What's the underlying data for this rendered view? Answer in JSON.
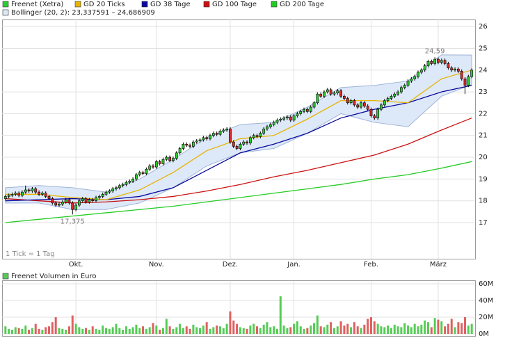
{
  "chart_data": [
    {
      "type": "candlestick",
      "name": "Freenet (Xetra)",
      "up_color": "#2ecc2e",
      "down_color": "#dd2a2a",
      "x": [
        0,
        1,
        2,
        3,
        4,
        5,
        6,
        7,
        8,
        9,
        10,
        11,
        12,
        13,
        14,
        15,
        16,
        17,
        18,
        19,
        20,
        21,
        22,
        23,
        24,
        25,
        26,
        27,
        28,
        29,
        30,
        31,
        32,
        33,
        34,
        35,
        36,
        37,
        38,
        39,
        40,
        41,
        42,
        43,
        44,
        45,
        46,
        47,
        48,
        49,
        50,
        51,
        52,
        53,
        54,
        55,
        56,
        57,
        58,
        59,
        60,
        61,
        62,
        63,
        64,
        65,
        66,
        67,
        68,
        69,
        70,
        71,
        72,
        73,
        74,
        75,
        76,
        77,
        78,
        79,
        80,
        81,
        82,
        83,
        84,
        85,
        86,
        87,
        88,
        89,
        90,
        91,
        92,
        93,
        94,
        95,
        96,
        97,
        98,
        99,
        100,
        101,
        102,
        103,
        104,
        105,
        106,
        107,
        108,
        109,
        110,
        111,
        112,
        113,
        114,
        115,
        116,
        117,
        118,
        119,
        120,
        121,
        122,
        123,
        124,
        125,
        126,
        127,
        128,
        129,
        130,
        131,
        132,
        133,
        134,
        135,
        136,
        137,
        138,
        139
      ],
      "open": [
        18.1,
        18.2,
        18.25,
        18.3,
        18.35,
        18.25,
        18.4,
        18.5,
        18.45,
        18.55,
        18.4,
        18.3,
        18.35,
        18.2,
        18.1,
        17.9,
        17.8,
        17.85,
        17.95,
        18.05,
        17.9,
        17.6,
        17.8,
        18.0,
        18.1,
        17.95,
        18.05,
        18.0,
        18.15,
        18.2,
        18.3,
        18.4,
        18.45,
        18.55,
        18.6,
        18.7,
        18.75,
        18.85,
        18.9,
        19.0,
        19.2,
        19.3,
        19.25,
        19.45,
        19.6,
        19.55,
        19.8,
        19.7,
        19.9,
        20.0,
        19.85,
        19.95,
        20.2,
        20.4,
        20.6,
        20.55,
        20.5,
        20.7,
        20.75,
        20.8,
        20.9,
        20.85,
        21.0,
        21.1,
        21.05,
        21.2,
        21.25,
        21.3,
        20.7,
        20.5,
        20.4,
        20.6,
        20.7,
        20.65,
        20.9,
        21.0,
        20.95,
        21.1,
        21.3,
        21.4,
        21.5,
        21.6,
        21.7,
        21.75,
        21.8,
        21.85,
        21.7,
        21.9,
        22.0,
        22.1,
        22.2,
        22.1,
        22.3,
        22.5,
        22.9,
        22.8,
        23.0,
        23.1,
        22.9,
        22.95,
        23.05,
        22.8,
        22.7,
        22.5,
        22.6,
        22.4,
        22.3,
        22.5,
        22.35,
        22.2,
        21.9,
        21.8,
        22.2,
        22.4,
        22.6,
        22.7,
        22.8,
        22.9,
        23.0,
        23.2,
        23.3,
        23.5,
        23.6,
        23.7,
        23.9,
        24.0,
        24.2,
        24.4,
        24.3,
        24.5,
        24.35,
        24.45,
        24.3,
        24.1,
        24.0,
        24.05,
        23.95,
        23.6,
        23.3,
        23.7
      ],
      "high": [
        18.28,
        18.33,
        18.38,
        18.43,
        18.43,
        18.48,
        18.7,
        18.58,
        18.63,
        18.63,
        18.48,
        18.43,
        18.43,
        18.28,
        18.18,
        17.98,
        17.93,
        18.03,
        18.13,
        18.13,
        17.98,
        17.88,
        18.08,
        18.18,
        18.18,
        18.13,
        18.13,
        18.23,
        18.28,
        18.38,
        18.48,
        18.53,
        18.63,
        18.68,
        18.78,
        18.83,
        18.93,
        18.98,
        19.08,
        19.28,
        19.38,
        19.38,
        19.53,
        19.68,
        19.68,
        19.88,
        19.88,
        19.98,
        20.08,
        20.08,
        20.03,
        20.28,
        20.48,
        20.68,
        20.68,
        20.63,
        20.78,
        20.83,
        20.88,
        20.98,
        20.98,
        21.08,
        21.18,
        21.18,
        21.28,
        21.33,
        21.38,
        21.38,
        20.78,
        20.58,
        20.68,
        20.78,
        20.78,
        20.98,
        21.08,
        21.08,
        21.18,
        21.38,
        21.48,
        21.58,
        21.68,
        21.78,
        21.83,
        21.88,
        21.93,
        21.93,
        21.98,
        22.08,
        22.18,
        22.28,
        22.28,
        22.38,
        22.58,
        22.98,
        22.98,
        23.08,
        23.18,
        23.18,
        23.03,
        23.13,
        23.13,
        22.88,
        22.78,
        22.68,
        22.68,
        22.48,
        22.58,
        22.58,
        22.43,
        22.28,
        21.98,
        22.28,
        22.48,
        22.68,
        22.78,
        22.88,
        22.98,
        23.08,
        23.28,
        23.38,
        23.58,
        23.68,
        23.78,
        23.98,
        24.08,
        24.28,
        24.48,
        24.48,
        24.59,
        24.58,
        24.53,
        24.53,
        24.38,
        24.18,
        24.13,
        24.13,
        24.03,
        23.68,
        23.78,
        24.08
      ],
      "low": [
        18.02,
        18.12,
        18.17,
        18.22,
        18.17,
        18.17,
        18.32,
        18.37,
        18.37,
        18.32,
        18.22,
        18.22,
        18.12,
        18.02,
        17.82,
        17.72,
        17.72,
        17.77,
        17.87,
        17.82,
        17.375,
        17.52,
        17.72,
        17.92,
        17.87,
        17.87,
        17.92,
        17.92,
        18.07,
        18.12,
        18.22,
        18.32,
        18.37,
        18.47,
        18.52,
        18.62,
        18.67,
        18.77,
        18.82,
        18.92,
        19.12,
        19.17,
        19.17,
        19.37,
        19.47,
        19.47,
        19.62,
        19.62,
        19.82,
        19.77,
        19.77,
        19.87,
        20.12,
        20.32,
        20.47,
        20.42,
        20.42,
        20.62,
        20.67,
        20.72,
        20.77,
        20.77,
        20.92,
        20.97,
        20.97,
        21.12,
        21.17,
        20.62,
        20.42,
        20.32,
        20.32,
        20.52,
        20.57,
        20.57,
        20.82,
        20.87,
        20.87,
        21.02,
        21.22,
        21.32,
        21.42,
        21.52,
        21.62,
        21.67,
        21.72,
        21.62,
        21.62,
        21.82,
        21.92,
        22.02,
        22.02,
        22.02,
        22.22,
        22.42,
        22.72,
        22.72,
        22.92,
        22.82,
        22.82,
        22.87,
        22.72,
        22.62,
        22.42,
        22.42,
        22.32,
        22.22,
        22.22,
        22.27,
        22.12,
        21.82,
        21.72,
        21.72,
        22.12,
        22.32,
        22.52,
        22.62,
        22.72,
        22.82,
        22.92,
        23.12,
        23.22,
        23.42,
        23.52,
        23.62,
        23.82,
        23.92,
        24.12,
        24.22,
        24.22,
        24.27,
        24.27,
        24.22,
        24.02,
        23.92,
        23.92,
        23.87,
        23.52,
        22.9,
        23.22,
        23.62
      ],
      "close": [
        18.2,
        18.25,
        18.3,
        18.35,
        18.25,
        18.4,
        18.5,
        18.45,
        18.55,
        18.4,
        18.3,
        18.35,
        18.2,
        18.1,
        17.9,
        17.8,
        17.85,
        17.95,
        18.05,
        17.9,
        17.6,
        17.8,
        18.0,
        18.1,
        17.95,
        18.05,
        18.0,
        18.15,
        18.2,
        18.3,
        18.4,
        18.45,
        18.55,
        18.6,
        18.7,
        18.75,
        18.85,
        18.9,
        19.0,
        19.2,
        19.3,
        19.25,
        19.45,
        19.6,
        19.55,
        19.8,
        19.7,
        19.9,
        20.0,
        19.85,
        19.95,
        20.2,
        20.4,
        20.6,
        20.55,
        20.5,
        20.7,
        20.75,
        20.8,
        20.9,
        20.85,
        21.0,
        21.1,
        21.05,
        21.2,
        21.25,
        21.3,
        20.7,
        20.5,
        20.4,
        20.6,
        20.7,
        20.65,
        20.9,
        21.0,
        20.95,
        21.1,
        21.3,
        21.4,
        21.5,
        21.6,
        21.7,
        21.75,
        21.8,
        21.85,
        21.7,
        21.9,
        22.0,
        22.1,
        22.2,
        22.1,
        22.3,
        22.5,
        22.9,
        22.8,
        23.0,
        23.1,
        22.9,
        22.95,
        23.05,
        22.8,
        22.7,
        22.5,
        22.6,
        22.4,
        22.3,
        22.5,
        22.35,
        22.2,
        21.9,
        21.8,
        22.2,
        22.4,
        22.6,
        22.7,
        22.8,
        22.9,
        23.0,
        23.2,
        23.3,
        23.5,
        23.6,
        23.7,
        23.9,
        24.0,
        24.2,
        24.4,
        24.3,
        24.5,
        24.35,
        24.45,
        24.3,
        24.1,
        24.0,
        24.05,
        23.95,
        23.6,
        23.3,
        23.7,
        24.0
      ],
      "lines": [
        {
          "name": "GD 20 Ticks",
          "color": "#e8b400",
          "x": [
            0,
            10,
            20,
            30,
            40,
            50,
            60,
            70,
            80,
            90,
            100,
            110,
            120,
            130,
            139
          ],
          "values": [
            18.3,
            18.3,
            18.15,
            18.05,
            18.5,
            19.3,
            20.3,
            20.85,
            21.0,
            21.75,
            22.6,
            22.6,
            22.5,
            23.6,
            24.0
          ]
        },
        {
          "name": "GD 38 Tage",
          "color": "#0a0a9c",
          "x": [
            0,
            10,
            20,
            30,
            40,
            50,
            60,
            70,
            80,
            90,
            100,
            110,
            120,
            130,
            139
          ],
          "values": [
            18.0,
            18.05,
            18.1,
            18.05,
            18.2,
            18.6,
            19.4,
            20.2,
            20.6,
            21.1,
            21.8,
            22.2,
            22.5,
            23.0,
            23.3
          ]
        },
        {
          "name": "GD 100 Tage",
          "color": "#cc1111",
          "x": [
            0,
            10,
            20,
            30,
            40,
            50,
            60,
            70,
            80,
            90,
            100,
            110,
            120,
            130,
            139
          ],
          "values": [
            18.1,
            18.0,
            17.9,
            17.95,
            18.05,
            18.2,
            18.45,
            18.75,
            19.1,
            19.4,
            19.75,
            20.1,
            20.6,
            21.25,
            21.8
          ]
        },
        {
          "name": "GD 200 Tage",
          "color": "#22cc22",
          "x": [
            0,
            10,
            20,
            30,
            40,
            50,
            60,
            70,
            80,
            90,
            100,
            110,
            120,
            130,
            139
          ],
          "values": [
            17.0,
            17.15,
            17.3,
            17.45,
            17.6,
            17.75,
            17.95,
            18.15,
            18.35,
            18.55,
            18.75,
            19.0,
            19.2,
            19.5,
            19.8
          ]
        }
      ],
      "band": {
        "name": "Bollinger (20, 2): 23,337591 – 24,686909",
        "color": "#dde8f8",
        "stroke": "#9fb4d8",
        "x": [
          0,
          10,
          20,
          30,
          40,
          50,
          60,
          70,
          80,
          90,
          100,
          110,
          120,
          130,
          139
        ],
        "upper": [
          18.6,
          18.7,
          18.6,
          18.4,
          19.0,
          19.9,
          20.9,
          21.5,
          21.6,
          22.3,
          23.2,
          23.3,
          23.5,
          24.7,
          24.69
        ],
        "lower": [
          17.9,
          17.9,
          17.6,
          17.6,
          17.9,
          18.6,
          19.6,
          20.2,
          20.4,
          21.1,
          22.0,
          21.6,
          21.4,
          22.8,
          23.34
        ]
      },
      "annotations": [
        {
          "text": "24,59",
          "x": 128,
          "y": 24.59
        },
        {
          "text": "17,375",
          "x": 20,
          "y": 17.375
        }
      ],
      "note": "1 Tick = 1 Tag",
      "xlim": [
        -1,
        140
      ],
      "xticks": [
        {
          "value": 21,
          "label": "Okt."
        },
        {
          "value": 45,
          "label": "Nov."
        },
        {
          "value": 67,
          "label": "Dez."
        },
        {
          "value": 86,
          "label": "Jan."
        },
        {
          "value": 109,
          "label": "Feb."
        },
        {
          "value": 129,
          "label": "März"
        }
      ],
      "ylim": [
        15.34,
        26.26
      ],
      "yticks": [
        17,
        18,
        19,
        20,
        21,
        22,
        23,
        24,
        25,
        26
      ],
      "grid": true
    },
    {
      "type": "bar",
      "name": "Freenet Volumen in Euro",
      "up_color": "#55cc55",
      "down_color": "#e06060",
      "values": [
        9000000.0,
        6000000.0,
        5000000.0,
        8000000.0,
        7000000.0,
        6000000.0,
        10000000.0,
        5000000.0,
        7000000.0,
        12000000.0,
        6000000.0,
        5000000.0,
        8000000.0,
        9000000.0,
        14000000.0,
        20000000.0,
        7000000.0,
        6000000.0,
        5000000.0,
        9000000.0,
        22000000.0,
        12000000.0,
        8000000.0,
        6000000.0,
        7000000.0,
        5000000.0,
        9000000.0,
        6000000.0,
        5000000.0,
        10000000.0,
        7000000.0,
        6000000.0,
        8000000.0,
        12000000.0,
        7000000.0,
        5000000.0,
        9000000.0,
        6000000.0,
        8000000.0,
        11000000.0,
        7000000.0,
        9000000.0,
        6000000.0,
        8000000.0,
        13000000.0,
        10000000.0,
        5000000.0,
        7000000.0,
        18000000.0,
        9000000.0,
        6000000.0,
        8000000.0,
        12000000.0,
        7000000.0,
        9000000.0,
        6000000.0,
        11000000.0,
        8000000.0,
        7000000.0,
        10000000.0,
        14000000.0,
        6000000.0,
        8000000.0,
        10000000.0,
        9000000.0,
        7000000.0,
        12000000.0,
        27000000.0,
        16000000.0,
        12000000.0,
        8000000.0,
        7000000.0,
        6000000.0,
        10000000.0,
        12000000.0,
        9000000.0,
        7000000.0,
        11000000.0,
        14000000.0,
        8000000.0,
        9000000.0,
        6000000.0,
        45000000.0,
        10000000.0,
        7000000.0,
        8000000.0,
        12000000.0,
        15000000.0,
        9000000.0,
        6000000.0,
        7000000.0,
        10000000.0,
        13000000.0,
        22000000.0,
        9000000.0,
        8000000.0,
        11000000.0,
        14000000.0,
        7000000.0,
        9000000.0,
        15000000.0,
        10000000.0,
        12000000.0,
        8000000.0,
        14000000.0,
        9000000.0,
        7000000.0,
        11000000.0,
        18000000.0,
        20000000.0,
        15000000.0,
        12000000.0,
        9000000.0,
        8000000.0,
        10000000.0,
        7000000.0,
        11000000.0,
        9000000.0,
        8000000.0,
        13000000.0,
        10000000.0,
        8000000.0,
        12000000.0,
        9000000.0,
        11000000.0,
        16000000.0,
        14000000.0,
        8000000.0,
        19000000.0,
        17000000.0,
        15000000.0,
        9000000.0,
        12000000.0,
        18000000.0,
        8000000.0,
        14000000.0,
        13000000.0,
        20000000.0,
        10000000.0,
        12000000.0
      ],
      "ylim": [
        0,
        60000000
      ],
      "yticks": [
        {
          "value": 0,
          "label": "0M"
        },
        {
          "value": 20000000,
          "label": "20M"
        },
        {
          "value": 40000000,
          "label": "40M"
        },
        {
          "value": 60000000,
          "label": "60M"
        }
      ],
      "grid": true
    }
  ]
}
